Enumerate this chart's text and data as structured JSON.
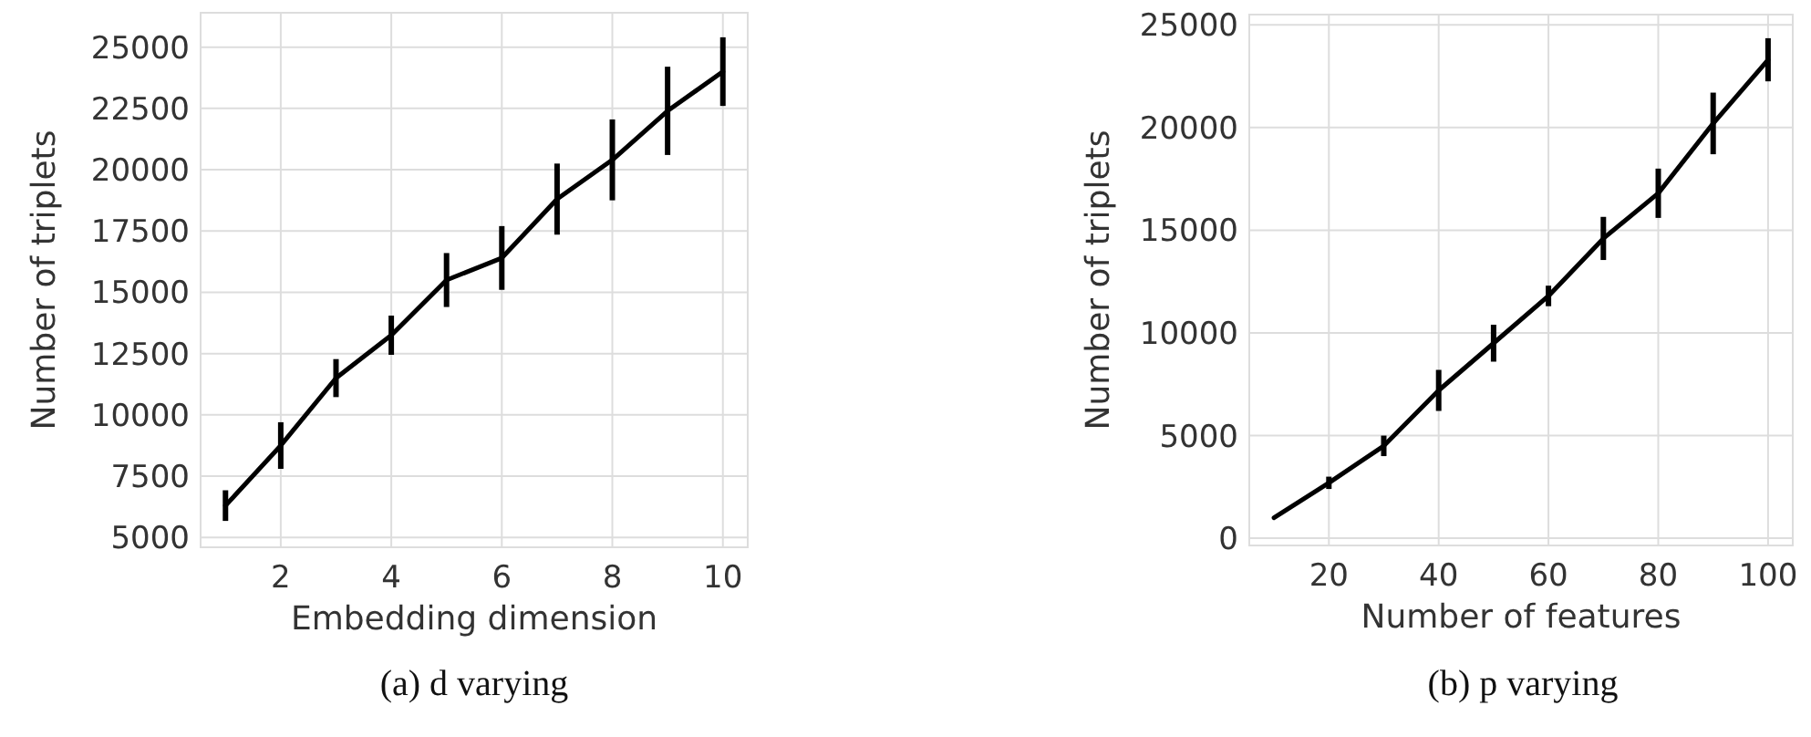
{
  "chart_data": [
    {
      "type": "line",
      "x": [
        1,
        2,
        3,
        4,
        5,
        6,
        7,
        8,
        9,
        10
      ],
      "xlim": [
        0.55,
        10.45
      ],
      "xticks": [
        2,
        4,
        6,
        8,
        10
      ],
      "ylim": [
        4600,
        26400
      ],
      "yticks": [
        5000,
        7500,
        10000,
        12500,
        15000,
        17500,
        20000,
        22500,
        25000
      ],
      "xlabel": "Embedding dimension",
      "ylabel": "Number of triplets",
      "grid": true,
      "marker": "none",
      "line_style": "solid",
      "series": [
        {
          "color": "#000000",
          "values": [
            6300,
            8750,
            11500,
            13250,
            15500,
            16400,
            18800,
            20400,
            22400,
            24000
          ],
          "errors": [
            625,
            950,
            775,
            800,
            1100,
            1300,
            1450,
            1650,
            1800,
            1400
          ]
        }
      ],
      "annotations": [
        "(a) d varying"
      ]
    },
    {
      "type": "line",
      "x": [
        10,
        20,
        30,
        40,
        50,
        60,
        70,
        80,
        90,
        100
      ],
      "xlim": [
        5.5,
        104.5
      ],
      "xticks": [
        20,
        40,
        60,
        80,
        100
      ],
      "ylim": [
        -350,
        25500
      ],
      "yticks": [
        0,
        5000,
        10000,
        15000,
        20000,
        25000
      ],
      "xlabel": "Number of features",
      "ylabel": "Number of triplets",
      "grid": true,
      "marker": "none",
      "line_style": "solid",
      "series": [
        {
          "color": "#000000",
          "values": [
            1000,
            2700,
            4500,
            7200,
            9500,
            11800,
            14600,
            16800,
            20200,
            23300
          ],
          "errors": [
            null,
            300,
            500,
            1000,
            900,
            500,
            1050,
            1200,
            1500,
            1050
          ]
        }
      ],
      "annotations": [
        "(b) p varying"
      ]
    }
  ]
}
